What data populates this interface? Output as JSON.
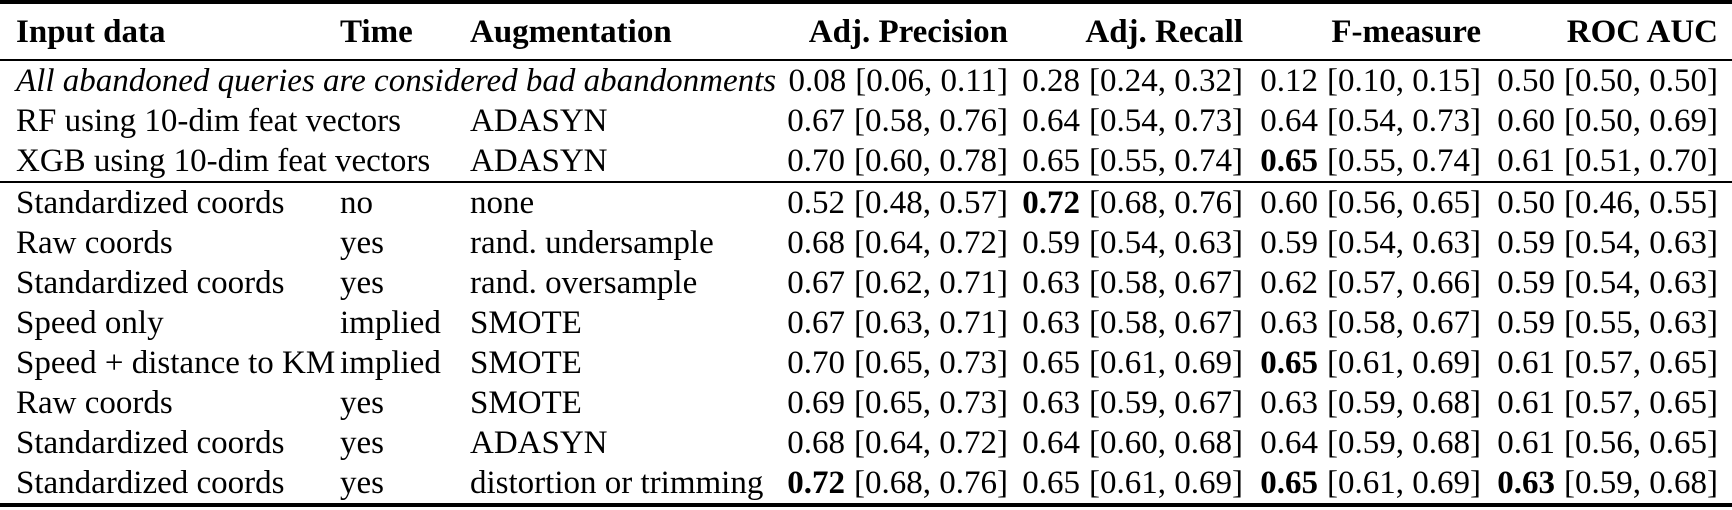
{
  "table": {
    "columns": [
      {
        "id": "input-data",
        "label": "Input data",
        "align": "left"
      },
      {
        "id": "time",
        "label": "Time",
        "align": "left"
      },
      {
        "id": "augmentation",
        "label": "Augmentation",
        "align": "left"
      },
      {
        "id": "adj-precision",
        "label": "Adj. Precision",
        "align": "right"
      },
      {
        "id": "adj-recall",
        "label": "Adj. Recall",
        "align": "right"
      },
      {
        "id": "f-measure",
        "label": "F-measure",
        "align": "right"
      },
      {
        "id": "roc-auc",
        "label": "ROC AUC",
        "align": "right"
      }
    ],
    "groups": [
      {
        "rows": [
          {
            "input": "All abandoned queries are considered bad abandonments",
            "input_italic": true,
            "spans_label_columns": true,
            "time": "",
            "augmentation": "",
            "metrics": [
              {
                "value": "0.08",
                "ci": "[0.06, 0.11]",
                "bold": false
              },
              {
                "value": "0.28",
                "ci": "[0.24, 0.32]",
                "bold": false
              },
              {
                "value": "0.12",
                "ci": "[0.10, 0.15]",
                "bold": false
              },
              {
                "value": "0.50",
                "ci": "[0.50, 0.50]",
                "bold": false
              }
            ]
          },
          {
            "input": "RF using 10-dim feat vectors",
            "time": "",
            "augmentation": "ADASYN",
            "metrics": [
              {
                "value": "0.67",
                "ci": "[0.58, 0.76]",
                "bold": false
              },
              {
                "value": "0.64",
                "ci": "[0.54, 0.73]",
                "bold": false
              },
              {
                "value": "0.64",
                "ci": "[0.54, 0.73]",
                "bold": false
              },
              {
                "value": "0.60",
                "ci": "[0.50, 0.69]",
                "bold": false
              }
            ]
          },
          {
            "input": "XGB using 10-dim feat vectors",
            "time": "",
            "augmentation": "ADASYN",
            "metrics": [
              {
                "value": "0.70",
                "ci": "[0.60, 0.78]",
                "bold": false
              },
              {
                "value": "0.65",
                "ci": "[0.55, 0.74]",
                "bold": false
              },
              {
                "value": "0.65",
                "ci": "[0.55, 0.74]",
                "bold": true
              },
              {
                "value": "0.61",
                "ci": "[0.51, 0.70]",
                "bold": false
              }
            ]
          }
        ]
      },
      {
        "rows": [
          {
            "input": "Standardized coords",
            "time": "no",
            "augmentation": "none",
            "metrics": [
              {
                "value": "0.52",
                "ci": "[0.48, 0.57]",
                "bold": false
              },
              {
                "value": "0.72",
                "ci": "[0.68, 0.76]",
                "bold": true
              },
              {
                "value": "0.60",
                "ci": "[0.56, 0.65]",
                "bold": false
              },
              {
                "value": "0.50",
                "ci": "[0.46, 0.55]",
                "bold": false
              }
            ]
          },
          {
            "input": "Raw coords",
            "time": "yes",
            "augmentation": "rand. undersample",
            "metrics": [
              {
                "value": "0.68",
                "ci": "[0.64, 0.72]",
                "bold": false
              },
              {
                "value": "0.59",
                "ci": "[0.54, 0.63]",
                "bold": false
              },
              {
                "value": "0.59",
                "ci": "[0.54, 0.63]",
                "bold": false
              },
              {
                "value": "0.59",
                "ci": "[0.54, 0.63]",
                "bold": false
              }
            ]
          },
          {
            "input": "Standardized coords",
            "time": "yes",
            "augmentation": "rand. oversample",
            "metrics": [
              {
                "value": "0.67",
                "ci": "[0.62, 0.71]",
                "bold": false
              },
              {
                "value": "0.63",
                "ci": "[0.58, 0.67]",
                "bold": false
              },
              {
                "value": "0.62",
                "ci": "[0.57, 0.66]",
                "bold": false
              },
              {
                "value": "0.59",
                "ci": "[0.54, 0.63]",
                "bold": false
              }
            ]
          },
          {
            "input": "Speed only",
            "time": "implied",
            "augmentation": "SMOTE",
            "metrics": [
              {
                "value": "0.67",
                "ci": "[0.63, 0.71]",
                "bold": false
              },
              {
                "value": "0.63",
                "ci": "[0.58, 0.67]",
                "bold": false
              },
              {
                "value": "0.63",
                "ci": "[0.58, 0.67]",
                "bold": false
              },
              {
                "value": "0.59",
                "ci": "[0.55, 0.63]",
                "bold": false
              }
            ]
          },
          {
            "input": "Speed + distance to KM",
            "time": "implied",
            "augmentation": "SMOTE",
            "metrics": [
              {
                "value": "0.70",
                "ci": "[0.65, 0.73]",
                "bold": false
              },
              {
                "value": "0.65",
                "ci": "[0.61, 0.69]",
                "bold": false
              },
              {
                "value": "0.65",
                "ci": "[0.61, 0.69]",
                "bold": true
              },
              {
                "value": "0.61",
                "ci": "[0.57, 0.65]",
                "bold": false
              }
            ]
          },
          {
            "input": "Raw coords",
            "time": "yes",
            "augmentation": "SMOTE",
            "metrics": [
              {
                "value": "0.69",
                "ci": "[0.65, 0.73]",
                "bold": false
              },
              {
                "value": "0.63",
                "ci": "[0.59, 0.67]",
                "bold": false
              },
              {
                "value": "0.63",
                "ci": "[0.59, 0.68]",
                "bold": false
              },
              {
                "value": "0.61",
                "ci": "[0.57, 0.65]",
                "bold": false
              }
            ]
          },
          {
            "input": "Standardized coords",
            "time": "yes",
            "augmentation": "ADASYN",
            "metrics": [
              {
                "value": "0.68",
                "ci": "[0.64, 0.72]",
                "bold": false
              },
              {
                "value": "0.64",
                "ci": "[0.60, 0.68]",
                "bold": false
              },
              {
                "value": "0.64",
                "ci": "[0.59, 0.68]",
                "bold": false
              },
              {
                "value": "0.61",
                "ci": "[0.56, 0.65]",
                "bold": false
              }
            ]
          },
          {
            "input": "Standardized coords",
            "time": "yes",
            "augmentation": "distortion or trimming",
            "metrics": [
              {
                "value": "0.72",
                "ci": "[0.68, 0.76]",
                "bold": true
              },
              {
                "value": "0.65",
                "ci": "[0.61, 0.69]",
                "bold": false
              },
              {
                "value": "0.65",
                "ci": "[0.61, 0.69]",
                "bold": true
              },
              {
                "value": "0.63",
                "ci": "[0.59, 0.68]",
                "bold": true
              }
            ]
          }
        ]
      }
    ]
  }
}
